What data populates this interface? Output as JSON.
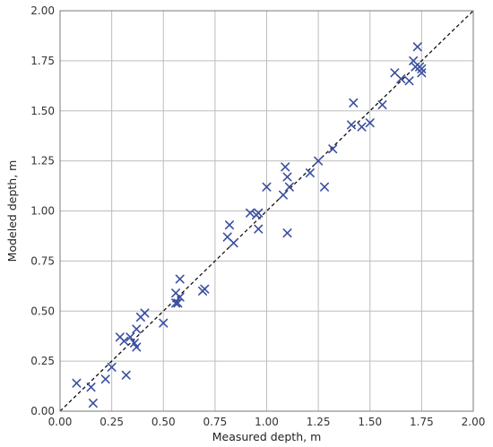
{
  "chart_data": {
    "type": "scatter",
    "title": "",
    "xlabel": "Measured depth, m",
    "ylabel": "Modeled depth, m",
    "xlim": [
      0,
      2
    ],
    "ylim": [
      0,
      2
    ],
    "xticks": [
      "0.00",
      "0.25",
      "0.50",
      "0.75",
      "1.00",
      "1.25",
      "1.50",
      "1.75",
      "2.00"
    ],
    "yticks": [
      "0.00",
      "0.25",
      "0.50",
      "0.75",
      "1.00",
      "1.25",
      "1.50",
      "1.75",
      "2.00"
    ],
    "grid": true,
    "marker": "x",
    "marker_color": "#3a4fa0",
    "reference_line": {
      "style": "dashed",
      "color": "#111111",
      "from": [
        0,
        0
      ],
      "to": [
        2,
        2
      ]
    },
    "series": [
      {
        "points": [
          [
            0.08,
            0.14
          ],
          [
            0.15,
            0.12
          ],
          [
            0.16,
            0.04
          ],
          [
            0.22,
            0.16
          ],
          [
            0.25,
            0.22
          ],
          [
            0.29,
            0.37
          ],
          [
            0.31,
            0.35
          ],
          [
            0.32,
            0.18
          ],
          [
            0.34,
            0.37
          ],
          [
            0.36,
            0.34
          ],
          [
            0.37,
            0.32
          ],
          [
            0.37,
            0.41
          ],
          [
            0.39,
            0.47
          ],
          [
            0.41,
            0.49
          ],
          [
            0.5,
            0.44
          ],
          [
            0.56,
            0.59
          ],
          [
            0.56,
            0.54
          ],
          [
            0.57,
            0.54
          ],
          [
            0.58,
            0.66
          ],
          [
            0.58,
            0.57
          ],
          [
            0.69,
            0.6
          ],
          [
            0.7,
            0.61
          ],
          [
            0.81,
            0.87
          ],
          [
            0.82,
            0.93
          ],
          [
            0.84,
            0.84
          ],
          [
            0.92,
            0.99
          ],
          [
            0.95,
            0.98
          ],
          [
            0.96,
            0.91
          ],
          [
            0.96,
            0.99
          ],
          [
            1.0,
            1.12
          ],
          [
            1.08,
            1.08
          ],
          [
            1.09,
            1.22
          ],
          [
            1.1,
            0.89
          ],
          [
            1.1,
            1.17
          ],
          [
            1.11,
            1.12
          ],
          [
            1.21,
            1.19
          ],
          [
            1.25,
            1.25
          ],
          [
            1.28,
            1.12
          ],
          [
            1.32,
            1.31
          ],
          [
            1.41,
            1.43
          ],
          [
            1.42,
            1.54
          ],
          [
            1.46,
            1.42
          ],
          [
            1.5,
            1.44
          ],
          [
            1.56,
            1.53
          ],
          [
            1.62,
            1.69
          ],
          [
            1.65,
            1.66
          ],
          [
            1.69,
            1.65
          ],
          [
            1.71,
            1.75
          ],
          [
            1.72,
            1.72
          ],
          [
            1.73,
            1.82
          ],
          [
            1.74,
            1.72
          ],
          [
            1.75,
            1.69
          ],
          [
            1.75,
            1.71
          ]
        ]
      }
    ]
  }
}
